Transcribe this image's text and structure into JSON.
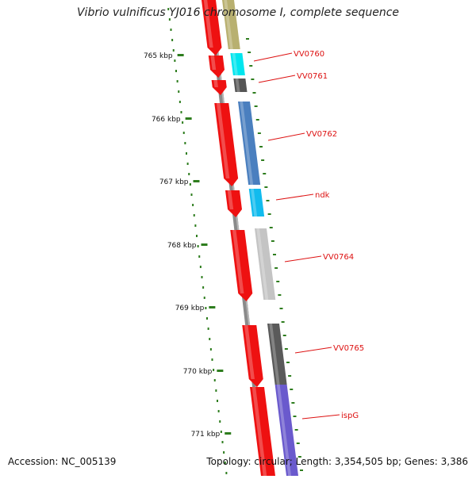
{
  "title": "Vibrio vulnificus YJ016 chromosome I, complete sequence",
  "footer": {
    "accession": "Accession: NC_005139",
    "topology": "Topology: circular; Length: 3,354,505 bp; Genes: 3,386"
  },
  "colors": {
    "tick_green": "#2e7d1e",
    "forward_red": "#ee1111",
    "label_red": "#dd1111",
    "backbone": "#8a8a8a"
  },
  "ruler_ticks": [
    {
      "label": "765 kbp"
    },
    {
      "label": "766 kbp"
    },
    {
      "label": "767 kbp"
    },
    {
      "label": "768 kbp"
    },
    {
      "label": "769 kbp"
    },
    {
      "label": "770 kbp"
    },
    {
      "label": "771 kbp"
    }
  ],
  "genes": [
    {
      "name": "VV0760",
      "color": "#00e5ee"
    },
    {
      "name": "VV0761",
      "color": "#555555"
    },
    {
      "name": "VV0762",
      "color": "#4a7fbf"
    },
    {
      "name": "ndk",
      "color": "#11bbee"
    },
    {
      "name": "VV0764",
      "color": "#c4c4c4"
    },
    {
      "name": "VV0765",
      "color": "#5a5a5a"
    },
    {
      "name": "ispG",
      "color": "#6a5acd"
    }
  ],
  "feature_colors": {
    "khaki_feature": "#b8b070"
  }
}
